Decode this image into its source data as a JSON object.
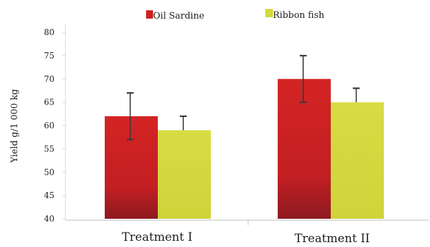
{
  "chart_data": {
    "type": "bar",
    "title": "",
    "xlabel": "",
    "ylabel": "Yield g/1 000 kg",
    "categories": [
      "Treatment I",
      "Treatment II"
    ],
    "series": [
      {
        "name": "Oil Sardine",
        "values": [
          62,
          70
        ],
        "error_low": [
          57,
          65
        ],
        "error_high": [
          67,
          75
        ],
        "color": "#cc2222"
      },
      {
        "name": "Ribbon fish",
        "values": [
          59,
          65
        ],
        "error_low": [
          59,
          65
        ],
        "error_high": [
          62,
          68
        ],
        "color": "#d4d93c"
      }
    ],
    "ylim": [
      40,
      80
    ],
    "yticks": [
      40,
      45,
      50,
      55,
      60,
      65,
      70,
      75,
      80
    ],
    "grid": false,
    "legend_position": "top"
  }
}
